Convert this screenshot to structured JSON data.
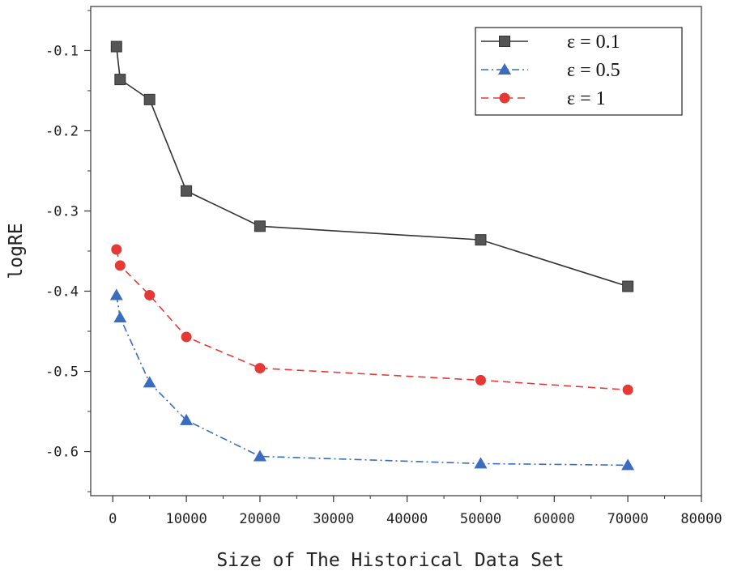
{
  "chart_data": {
    "type": "line",
    "xlabel": "Size of The Historical Data Set",
    "ylabel": "logRE",
    "xlim": [
      -3000,
      80000
    ],
    "ylim": [
      -0.655,
      -0.045
    ],
    "xticks": [
      0,
      10000,
      20000,
      30000,
      40000,
      50000,
      60000,
      70000,
      80000
    ],
    "xtick_labels": [
      "0",
      "10000",
      "20000",
      "30000",
      "40000",
      "50000",
      "60000",
      "70000",
      "80000"
    ],
    "yticks": [
      -0.1,
      -0.2,
      -0.3,
      -0.4,
      -0.5,
      -0.6
    ],
    "ytick_labels": [
      "-0.1",
      "-0.2",
      "-0.3",
      "-0.4",
      "-0.5",
      "-0.6"
    ],
    "legend_position": "top-right",
    "series": [
      {
        "name": "ε = 0.1",
        "color": "#333333",
        "dash": "solid",
        "marker": "square",
        "x": [
          500,
          1000,
          5000,
          10000,
          20000,
          50000,
          70000
        ],
        "y": [
          -0.095,
          -0.136,
          -0.161,
          -0.275,
          -0.319,
          -0.336,
          -0.394
        ]
      },
      {
        "name": "ε = 0.5",
        "color": "#3a6cc0",
        "dash": "dashdot",
        "marker": "triangle",
        "x": [
          500,
          1000,
          5000,
          10000,
          20000,
          50000,
          70000
        ],
        "y": [
          -0.405,
          -0.433,
          -0.514,
          -0.561,
          -0.606,
          -0.615,
          -0.617
        ]
      },
      {
        "name": "ε = 1",
        "color": "#e53935",
        "dash": "dashed",
        "marker": "circle",
        "x": [
          500,
          1000,
          5000,
          10000,
          20000,
          50000,
          70000
        ],
        "y": [
          -0.348,
          -0.368,
          -0.405,
          -0.457,
          -0.496,
          -0.511,
          -0.523
        ]
      }
    ]
  }
}
